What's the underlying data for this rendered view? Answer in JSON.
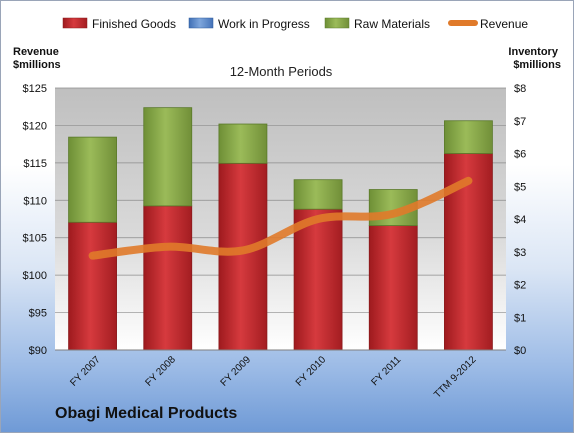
{
  "company": "Obagi Medical Products",
  "chart_data": {
    "type": "bar",
    "title": "12-Month Periods",
    "left_axis_label": "Revenue\n$millions",
    "right_axis_label": "Inventory\n$millions",
    "categories": [
      "FY 2007",
      "FY 2008",
      "FY 2009",
      "FY 2010",
      "FY 2011",
      "TTM 9-2012"
    ],
    "left_axis": {
      "min": 90,
      "max": 125,
      "step": 5,
      "ticks": [
        "$90",
        "$95",
        "$100",
        "$105",
        "$110",
        "$115",
        "$120",
        "$125"
      ]
    },
    "right_axis": {
      "min": 0,
      "max": 8,
      "step": 1,
      "ticks": [
        "$0",
        "$1",
        "$2",
        "$3",
        "$4",
        "$5",
        "$6",
        "$7",
        "$8"
      ]
    },
    "legend_position": "top",
    "grid": true,
    "series": [
      {
        "name": "Finished Goods",
        "kind": "bar",
        "axis": "right",
        "color": "#c0262a",
        "values": [
          3.9,
          4.4,
          5.7,
          4.3,
          3.8,
          6.0
        ]
      },
      {
        "name": "Work in Progress",
        "kind": "bar",
        "axis": "right",
        "color": "#5b87c8",
        "values": [
          0,
          0,
          0,
          0,
          0,
          0
        ]
      },
      {
        "name": "Raw Materials",
        "kind": "bar",
        "axis": "right",
        "color": "#87a94a",
        "values": [
          2.6,
          3.0,
          1.2,
          0.9,
          1.1,
          1.0
        ]
      },
      {
        "name": "Revenue",
        "kind": "line",
        "axis": "left",
        "color": "#e07a2a",
        "values": [
          102.6,
          103.8,
          103.3,
          107.5,
          108.2,
          112.6
        ]
      }
    ]
  }
}
